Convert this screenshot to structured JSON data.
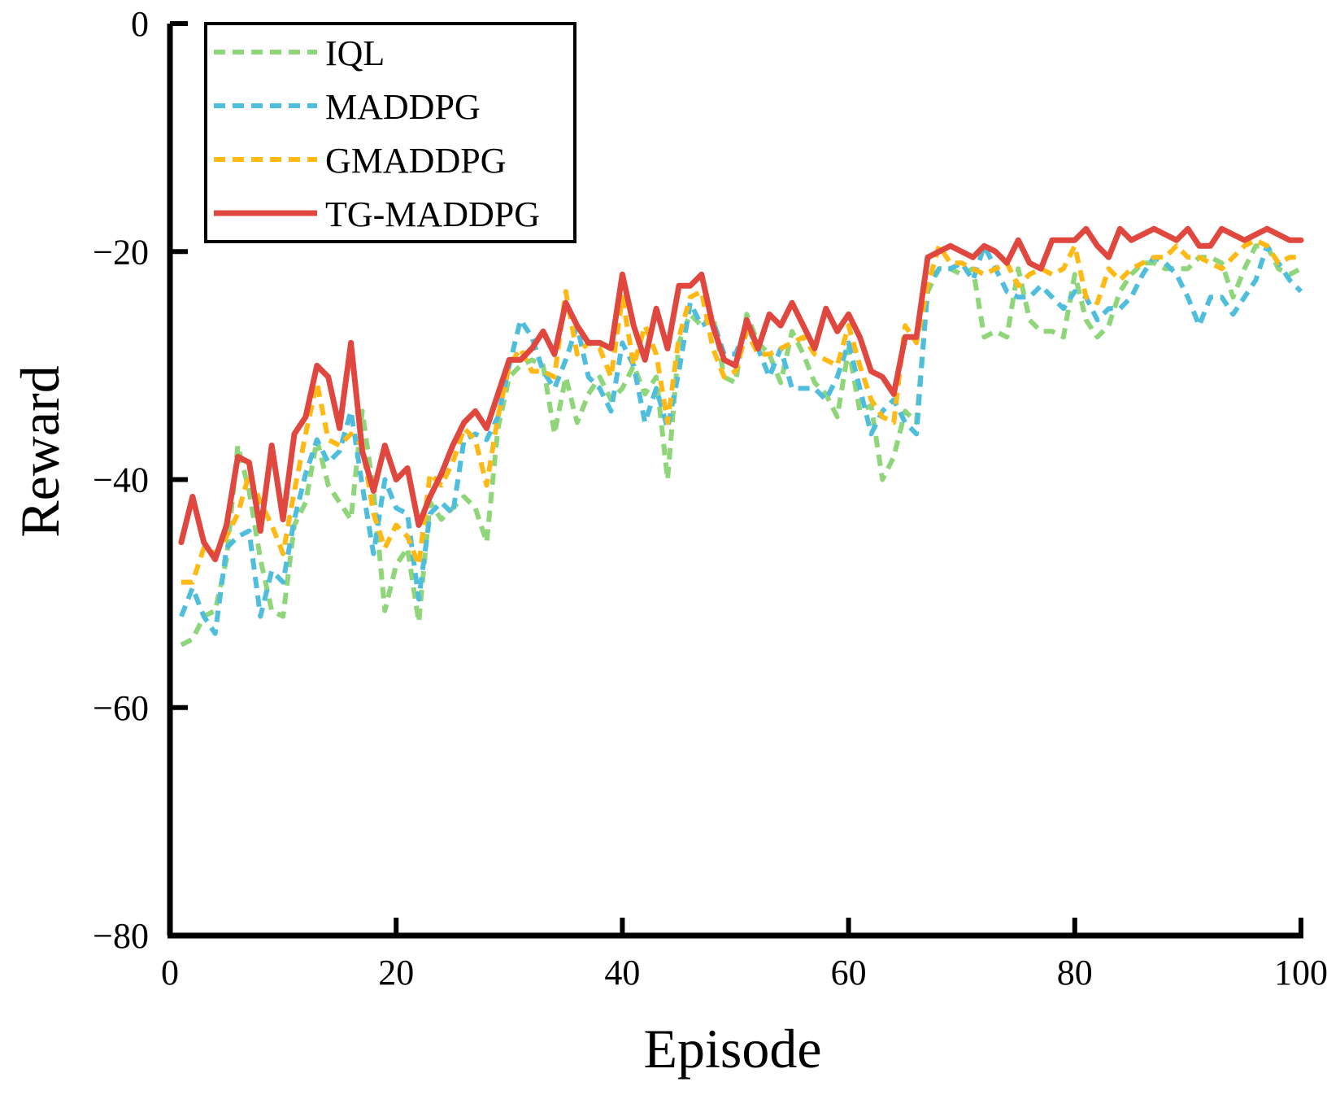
{
  "chart_data": {
    "type": "line",
    "xlabel": "Episode",
    "ylabel": "Reward",
    "xlim": [
      0,
      100
    ],
    "ylim": [
      -80,
      0
    ],
    "xticks": [
      0,
      20,
      40,
      60,
      80,
      100
    ],
    "yticks": [
      0,
      -20,
      -40,
      -60,
      -80
    ],
    "xtick_labels": [
      "0",
      "20",
      "40",
      "60",
      "80",
      "100"
    ],
    "ytick_labels": [
      "0",
      "−20",
      "−40",
      "−60",
      "−80"
    ],
    "grid": false,
    "legend_position": "top-left",
    "x": [
      1,
      2,
      3,
      4,
      5,
      6,
      7,
      8,
      9,
      10,
      11,
      12,
      13,
      14,
      15,
      16,
      17,
      18,
      19,
      20,
      21,
      22,
      23,
      24,
      25,
      26,
      27,
      28,
      29,
      30,
      31,
      32,
      33,
      34,
      35,
      36,
      37,
      38,
      39,
      40,
      41,
      42,
      43,
      44,
      45,
      46,
      47,
      48,
      49,
      50,
      51,
      52,
      53,
      54,
      55,
      56,
      57,
      58,
      59,
      60,
      61,
      62,
      63,
      64,
      65,
      66,
      67,
      68,
      69,
      70,
      71,
      72,
      73,
      74,
      75,
      76,
      77,
      78,
      79,
      80,
      81,
      82,
      83,
      84,
      85,
      86,
      87,
      88,
      89,
      90,
      91,
      92,
      93,
      94,
      95,
      96,
      97,
      98,
      99,
      100
    ],
    "series": [
      {
        "name": "IQL",
        "color": "#8fd67a",
        "style": "dashed",
        "values": [
          -54.5,
          -54,
          -52,
          -51.5,
          -47,
          -37,
          -41,
          -47,
          -51.5,
          -52,
          -44,
          -42,
          -36.5,
          -40.5,
          -42,
          -43.5,
          -34,
          -41,
          -51.5,
          -47.5,
          -46,
          -52.5,
          -42,
          -43.5,
          -42.5,
          -41.5,
          -42.5,
          -45.5,
          -35.5,
          -31,
          -30,
          -29.5,
          -30,
          -36,
          -31,
          -35,
          -32.5,
          -31,
          -33,
          -32,
          -30,
          -32.5,
          -31,
          -40,
          -28,
          -25.5,
          -26.5,
          -25.5,
          -31,
          -31.5,
          -25.5,
          -28,
          -29,
          -31.5,
          -27,
          -29,
          -31.5,
          -32.5,
          -34.5,
          -28.5,
          -34,
          -33.5,
          -40,
          -38,
          -34,
          -35,
          -23.5,
          -21.5,
          -21.5,
          -22,
          -21.5,
          -27.5,
          -27,
          -27.5,
          -21.5,
          -26,
          -27,
          -27,
          -27.5,
          -22,
          -26,
          -27.5,
          -26.5,
          -23.5,
          -22,
          -21,
          -21,
          -21.5,
          -21.5,
          -21.5,
          -20.5,
          -20.5,
          -21,
          -24,
          -21.5,
          -19.5,
          -19.5,
          -21.5,
          -22,
          -21.5
        ]
      },
      {
        "name": "MADDPG",
        "color": "#4fbedd",
        "style": "dashed",
        "values": [
          -52,
          -49.5,
          -52,
          -53.5,
          -46,
          -45,
          -44.5,
          -52,
          -48,
          -49,
          -43.5,
          -39.5,
          -36.5,
          -38.5,
          -37.5,
          -34,
          -40.5,
          -46.5,
          -40,
          -42.5,
          -43,
          -50.5,
          -43,
          -42,
          -43,
          -36.5,
          -36,
          -36.5,
          -34.5,
          -30,
          -26,
          -27.5,
          -30.5,
          -32,
          -29.5,
          -26.5,
          -31,
          -32,
          -34,
          -28,
          -30,
          -35,
          -32,
          -35.5,
          -30.5,
          -24.5,
          -26.5,
          -26,
          -29,
          -29,
          -26.5,
          -28.5,
          -31,
          -28.5,
          -32,
          -32,
          -32,
          -33,
          -31,
          -28,
          -32,
          -36,
          -34,
          -33,
          -35,
          -36,
          -23,
          -21.5,
          -21.5,
          -21,
          -22.5,
          -19.5,
          -21.5,
          -23.5,
          -24,
          -24,
          -23,
          -24,
          -25,
          -23.5,
          -24,
          -26,
          -25,
          -25,
          -24,
          -22,
          -20.5,
          -21,
          -22,
          -24,
          -26.5,
          -24,
          -24,
          -25.5,
          -24,
          -22.5,
          -19.5,
          -21,
          -22.5,
          -23.5
        ]
      },
      {
        "name": "GMADDPG",
        "color": "#ffb914",
        "style": "dashed",
        "values": [
          -49,
          -49,
          -46,
          -46.5,
          -45,
          -43,
          -39.5,
          -42,
          -44,
          -46.5,
          -41,
          -36,
          -31.5,
          -36.5,
          -37,
          -36,
          -37,
          -43,
          -46,
          -44,
          -45,
          -47.5,
          -39.5,
          -40.5,
          -38.5,
          -35.5,
          -36.5,
          -40.5,
          -34.5,
          -30,
          -28.5,
          -30.5,
          -30.5,
          -31,
          -23.5,
          -29,
          -28,
          -28.5,
          -31,
          -24,
          -30,
          -26.5,
          -29,
          -35,
          -27.5,
          -24,
          -23.5,
          -28.5,
          -31,
          -30.5,
          -27,
          -29,
          -29,
          -28.5,
          -28,
          -27.5,
          -29,
          -29.5,
          -30,
          -26.5,
          -30,
          -33,
          -34.5,
          -35,
          -26.5,
          -28,
          -23,
          -19.5,
          -21,
          -21,
          -21.5,
          -22,
          -21.5,
          -21,
          -23,
          -22,
          -21.5,
          -22,
          -21.5,
          -19.5,
          -24,
          -24.5,
          -21.5,
          -22.5,
          -21.5,
          -21,
          -20.5,
          -20.5,
          -19.5,
          -20.5,
          -20.5,
          -21,
          -21.5,
          -20.5,
          -19.5,
          -19,
          -19.5,
          -21,
          -20.5,
          -20.5
        ]
      },
      {
        "name": "TG-MADDPG",
        "color": "#e0483f",
        "style": "solid",
        "values": [
          -45.5,
          -41.5,
          -45.5,
          -47,
          -44,
          -38,
          -38.5,
          -44.5,
          -37,
          -43.5,
          -36,
          -34.5,
          -30,
          -31,
          -35.5,
          -28,
          -37.5,
          -41,
          -37,
          -40,
          -39,
          -44,
          -41.5,
          -39.5,
          -37,
          -35,
          -34,
          -35.5,
          -32.5,
          -29.5,
          -29.5,
          -28.5,
          -27,
          -29,
          -24.5,
          -26.5,
          -28,
          -28,
          -28.5,
          -22,
          -26.5,
          -29.5,
          -25,
          -28.5,
          -23,
          -23,
          -22,
          -26.5,
          -29.5,
          -30,
          -26,
          -28.5,
          -25.5,
          -26.5,
          -24.5,
          -26.5,
          -28.5,
          -25,
          -27,
          -25.5,
          -27.5,
          -30.5,
          -31,
          -32.5,
          -27.5,
          -27.5,
          -20.5,
          -20,
          -19.5,
          -20,
          -20.5,
          -19.5,
          -20,
          -21,
          -19,
          -21,
          -21.5,
          -19,
          -19,
          -19,
          -18,
          -19.5,
          -20.5,
          -18,
          -19,
          -18.5,
          -18,
          -18.5,
          -19,
          -18,
          -19.5,
          -19.5,
          -18,
          -18.5,
          -19,
          -18.5,
          -18,
          -18.5,
          -19,
          -19
        ]
      }
    ]
  }
}
